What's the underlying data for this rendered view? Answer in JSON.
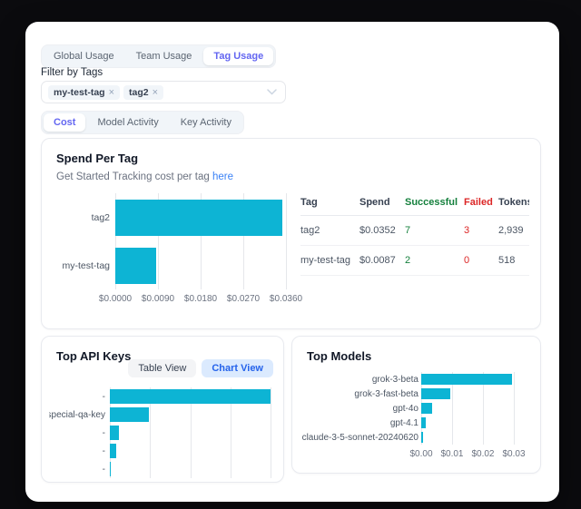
{
  "colors": {
    "accent_indigo": "#6366f1",
    "bar_cyan": "#0db4d4",
    "link_blue": "#3b82f6",
    "success_green": "#15803d",
    "failed_red": "#dc2626",
    "chart_view_bg": "#dbeafe",
    "chart_view_text": "#2563eb"
  },
  "tabs_primary": {
    "items": [
      {
        "label": "Global Usage",
        "active": false
      },
      {
        "label": "Team Usage",
        "active": false
      },
      {
        "label": "Tag Usage",
        "active": true
      }
    ]
  },
  "filter": {
    "label": "Filter by Tags",
    "chips": [
      {
        "label": "my-test-tag",
        "remove": "×"
      },
      {
        "label": "tag2",
        "remove": "×"
      }
    ]
  },
  "tabs_secondary": {
    "items": [
      {
        "label": "Cost",
        "active": true
      },
      {
        "label": "Model Activity",
        "active": false
      },
      {
        "label": "Key Activity",
        "active": false
      }
    ]
  },
  "spend_card": {
    "title": "Spend Per Tag",
    "subtitle_prefix": "Get Started Tracking cost per tag ",
    "subtitle_link": "here",
    "table": {
      "headers": [
        "Tag",
        "Spend",
        "Successful",
        "Failed",
        "Tokens"
      ],
      "rows": [
        {
          "tag": "tag2",
          "spend": "$0.0352",
          "successful": "7",
          "failed": "3",
          "tokens": "2,939"
        },
        {
          "tag": "my-test-tag",
          "spend": "$0.0087",
          "successful": "2",
          "failed": "0",
          "tokens": "518"
        }
      ]
    }
  },
  "top_api_keys": {
    "title": "Top API Keys",
    "view_buttons": [
      {
        "label": "Table View",
        "active": false
      },
      {
        "label": "Chart View",
        "active": true
      }
    ]
  },
  "top_models": {
    "title": "Top Models"
  },
  "chart_data": [
    {
      "id": "spend_per_tag",
      "type": "bar",
      "orientation": "horizontal",
      "title": "Spend Per Tag",
      "categories": [
        "tag2",
        "my-test-tag"
      ],
      "values": [
        0.0352,
        0.0087
      ],
      "x_ticks": [
        "$0.0000",
        "$0.0090",
        "$0.0180",
        "$0.0270",
        "$0.0360"
      ],
      "xlim": [
        0,
        0.036
      ],
      "grid": true,
      "legend": "none",
      "bar_color": "#0db4d4"
    },
    {
      "id": "top_api_keys",
      "type": "bar",
      "orientation": "horizontal",
      "title": "Top API Keys",
      "categories": [
        "-",
        "special-qa-key",
        "-",
        "-",
        "-"
      ],
      "values": [
        0.029,
        0.007,
        0.0017,
        0.0012,
        0.0001
      ],
      "x_ticks": [],
      "xlim": [
        0,
        0.029
      ],
      "grid": true,
      "legend": "none",
      "bar_color": "#0db4d4",
      "note": "x-axis labels clipped by card edge; values estimated from bar lengths relative to max"
    },
    {
      "id": "top_models",
      "type": "bar",
      "orientation": "horizontal",
      "title": "Top Models",
      "categories": [
        "grok-3-beta",
        "grok-3-fast-beta",
        "gpt-4o",
        "gpt-4.1",
        "claude-3-5-sonnet-20240620"
      ],
      "values": [
        0.0295,
        0.0093,
        0.0036,
        0.0014,
        0.0005
      ],
      "x_ticks": [
        "$0.00",
        "$0.01",
        "$0.02",
        "$0.03"
      ],
      "xlim": [
        0,
        0.03
      ],
      "grid": true,
      "legend": "none",
      "bar_color": "#0db4d4"
    }
  ]
}
